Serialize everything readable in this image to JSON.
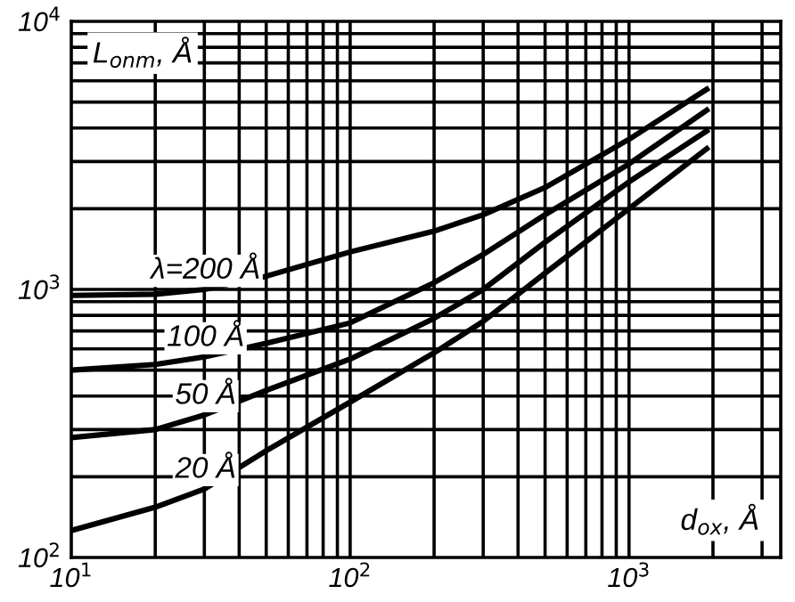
{
  "chart_data": {
    "type": "line",
    "log": "xy",
    "ylabel": "L$_{onm}$, Å",
    "xlabel": "d$_{ox}$, Å",
    "xlim": [
      10,
      3500
    ],
    "ylim": [
      100,
      10000
    ],
    "xticks": [
      {
        "value": 10,
        "label": "10$^{1}$"
      },
      {
        "value": 100,
        "label": "10$^{2}$"
      },
      {
        "value": 1000,
        "label": "10$^{3}$"
      }
    ],
    "yticks": [
      {
        "value": 100,
        "label": "10$^{2}$"
      },
      {
        "value": 1000,
        "label": "10$^{3}$"
      },
      {
        "value": 10000,
        "label": "10$^{4}$"
      }
    ],
    "grid": true,
    "legend": false,
    "marker": "none",
    "line_style": "solid",
    "series": [
      {
        "name": "λ=200 Å",
        "color": "#000000",
        "x": [
          10,
          20,
          30,
          50,
          100,
          200,
          300,
          500,
          1000,
          1900
        ],
        "values": [
          950,
          960,
          1000,
          1120,
          1380,
          1650,
          1900,
          2400,
          3630,
          5580
        ]
      },
      {
        "name": "100 Å",
        "color": "#000000",
        "x": [
          10,
          20,
          30,
          50,
          100,
          200,
          300,
          500,
          1000,
          1900
        ],
        "values": [
          500,
          525,
          560,
          630,
          750,
          1060,
          1350,
          1900,
          2940,
          4660
        ]
      },
      {
        "name": "50 Å",
        "color": "#000000",
        "x": [
          10,
          20,
          30,
          50,
          100,
          200,
          300,
          500,
          1000,
          1900
        ],
        "values": [
          280,
          300,
          340,
          420,
          550,
          780,
          1000,
          1500,
          2520,
          3900
        ]
      },
      {
        "name": "20 Å",
        "color": "#000000",
        "x": [
          10,
          20,
          30,
          50,
          100,
          200,
          300,
          500,
          1000,
          1900
        ],
        "values": [
          126,
          154,
          180,
          250,
          380,
          580,
          760,
          1150,
          2000,
          3350
        ]
      }
    ]
  }
}
